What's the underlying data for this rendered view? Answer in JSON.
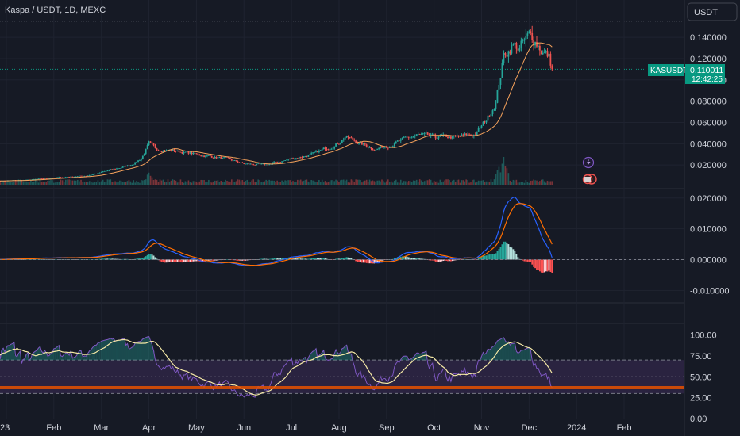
{
  "header": {
    "symbol_title": "Kaspa / USDT, 1D, MEXC",
    "currency_button": "USDT"
  },
  "price_badge": {
    "ticker": "KASUSDT",
    "price": "0.110011",
    "countdown": "12:42:25"
  },
  "colors": {
    "background": "#161a25",
    "up": "#26a69a",
    "down": "#ef5350",
    "ma": "#f7a35c",
    "macd_line": "#2962ff",
    "signal_line": "#ff6d00",
    "rsi_line": "#7e57c2",
    "rsi_ma": "#f5e9a6",
    "rsi_band": "#2a2340",
    "badge": "#089981"
  },
  "icons": [
    "lightning-icon",
    "earnings-flag-icon"
  ],
  "chart_data": [
    {
      "type": "candlestick",
      "title": "Kaspa / USDT, 1D, MEXC",
      "y_ticks": [
        "0.140000",
        "0.120000",
        "0.100000",
        "0.080000",
        "0.060000",
        "0.040000",
        "0.020000"
      ],
      "ylim": [
        0.0,
        0.155
      ],
      "x_ticks": [
        "23",
        "Feb",
        "Mar",
        "Apr",
        "May",
        "Jun",
        "Jul",
        "Aug",
        "Sep",
        "Oct",
        "Nov",
        "Dec",
        "2024",
        "Feb"
      ],
      "x_tick_dates": [
        "2023-01-01",
        "2023-02-01",
        "2023-03-01",
        "2023-04-01",
        "2023-05-01",
        "2023-06-01",
        "2023-07-01",
        "2023-08-01",
        "2023-09-01",
        "2023-10-01",
        "2023-11-01",
        "2023-12-01",
        "2024-01-01",
        "2024-02-01"
      ],
      "last_price": 0.110011,
      "close_anchors": {
        "dates": [
          "2022-12-25",
          "2023-01-15",
          "2023-02-01",
          "2023-02-20",
          "2023-03-01",
          "2023-03-20",
          "2023-03-27",
          "2023-04-01",
          "2023-04-05",
          "2023-04-15",
          "2023-05-01",
          "2023-05-20",
          "2023-06-01",
          "2023-06-15",
          "2023-07-01",
          "2023-07-15",
          "2023-08-01",
          "2023-08-05",
          "2023-08-15",
          "2023-08-25",
          "2023-09-05",
          "2023-09-20",
          "2023-10-01",
          "2023-10-15",
          "2023-10-28",
          "2023-11-01",
          "2023-11-05",
          "2023-11-10",
          "2023-11-15",
          "2023-11-20",
          "2023-11-25",
          "2023-12-01",
          "2023-12-05",
          "2023-12-10",
          "2023-12-14",
          "2023-12-16"
        ],
        "values": [
          0.005,
          0.006,
          0.008,
          0.01,
          0.013,
          0.02,
          0.026,
          0.04,
          0.035,
          0.034,
          0.03,
          0.026,
          0.021,
          0.02,
          0.026,
          0.03,
          0.041,
          0.047,
          0.04,
          0.035,
          0.04,
          0.048,
          0.046,
          0.046,
          0.049,
          0.056,
          0.065,
          0.08,
          0.122,
          0.133,
          0.13,
          0.14,
          0.138,
          0.127,
          0.121,
          0.11
        ]
      },
      "volume_peaks": [
        {
          "date": "2023-04-01",
          "relative": 0.45
        },
        {
          "date": "2023-11-12",
          "relative": 0.7
        },
        {
          "date": "2023-11-15",
          "relative": 1.0
        }
      ]
    },
    {
      "type": "line",
      "title": "MACD",
      "y_ticks": [
        "0.020000",
        "0.010000",
        "0.000000",
        "-0.010000"
      ],
      "ylim": [
        -0.013,
        0.022
      ],
      "series": [
        {
          "name": "",
          "role": "macd",
          "color": "#2962ff"
        },
        {
          "name": "",
          "role": "signal",
          "color": "#ff6d00"
        },
        {
          "name": "",
          "role": "histogram"
        }
      ]
    },
    {
      "type": "line",
      "title": "RSI",
      "y_ticks": [
        "100.00",
        "75.00",
        "50.00",
        "25.00",
        "0.00"
      ],
      "ylim": [
        0,
        110
      ],
      "band": [
        30,
        70
      ],
      "midline": 50,
      "last_value": 37,
      "series": [
        {
          "name": "",
          "role": "rsi",
          "color": "#7e57c2"
        },
        {
          "name": "",
          "role": "rsi_ma",
          "color": "#f5e9a6"
        }
      ]
    }
  ]
}
